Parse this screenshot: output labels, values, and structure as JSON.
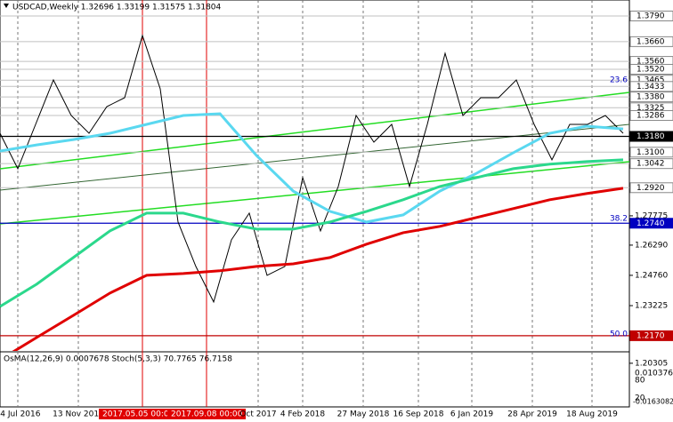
{
  "chart_data": {
    "type": "line",
    "title": "USDCAD,Weekly  1.32696 1.33199 1.31575 1.31804",
    "ylim": [
      1.2093,
      1.3871
    ],
    "yticks": [
      {
        "value": 1.27775,
        "label": "1.27775"
      },
      {
        "value": 1.2629,
        "label": "1.26290"
      },
      {
        "value": 1.2476,
        "label": "1.24760"
      },
      {
        "value": 1.23225,
        "label": "1.23225"
      },
      {
        "value": 1.20305,
        "label": "1.20305"
      }
    ],
    "levels": [
      {
        "value": 1.379,
        "label": "1.3790",
        "color": "#c0c0c0"
      },
      {
        "value": 1.366,
        "label": "1.3660",
        "color": "#c0c0c0"
      },
      {
        "value": 1.356,
        "label": "1.3560",
        "color": "#c0c0c0"
      },
      {
        "value": 1.352,
        "label": "1.3520",
        "color": "#c0c0c0"
      },
      {
        "value": 1.3465,
        "label": "1.3465",
        "color": "#c0c0c0"
      },
      {
        "value": 1.3433,
        "label": "1.3433",
        "color": "#c0c0c0"
      },
      {
        "value": 1.338,
        "label": "1.3380",
        "color": "#c0c0c0"
      },
      {
        "value": 1.3325,
        "label": "1.3325",
        "color": "#c0c0c0"
      },
      {
        "value": 1.3286,
        "label": "1.3286",
        "color": "#c0c0c0"
      },
      {
        "value": 1.318,
        "label": "1.3180",
        "color": "#000000"
      },
      {
        "value": 1.31,
        "label": "1.3100",
        "color": "#c0c0c0"
      },
      {
        "value": 1.3042,
        "label": "1.3042",
        "color": "#c0c0c0"
      },
      {
        "value": 1.292,
        "label": "1.2920",
        "color": "#c0c0c0"
      },
      {
        "value": 1.274,
        "label": "1.2740",
        "color": "#0000c0"
      },
      {
        "value": 1.217,
        "label": "1.2170",
        "color": "#c00000"
      }
    ],
    "x_labels": [
      "24 Jul 2016",
      "13 Nov 2016",
      "2017.05.05 00:00",
      "2017.09.08 00:00",
      "Oct 2017",
      "4 Feb 2018",
      "27 May 2018",
      "16 Sep 2018",
      "6 Jan 2019",
      "28 Apr 2019",
      "18 Aug 2019"
    ],
    "annotations": [
      "23.6",
      "38.2",
      "50.0"
    ],
    "series": [
      {
        "name": "Close",
        "color": "#000000",
        "values": [
          1.3196,
          1.3016,
          1.3241,
          1.3466,
          1.3286,
          1.3196,
          1.3331,
          1.3376,
          1.3691,
          1.3421,
          1.2746,
          1.2521,
          1.2341,
          1.2656,
          1.2791,
          1.2476,
          1.2521,
          1.2971,
          1.2701,
          1.2926,
          1.3286,
          1.3151,
          1.3241,
          1.2926,
          1.3241,
          1.3601,
          1.3286,
          1.3376,
          1.3376,
          1.3466,
          1.3241,
          1.3061,
          1.3241,
          1.3241,
          1.3286,
          1.3196
        ]
      },
      {
        "name": "EMA fast",
        "color": "#5ad8f0",
        "values": [
          1.3106,
          1.3137,
          1.3164,
          1.3196,
          1.3241,
          1.3286,
          1.3295,
          1.3083,
          1.2903,
          1.28,
          1.2746,
          1.2782,
          1.2903,
          1.2993,
          1.3097,
          1.3196,
          1.3232,
          1.3218
        ]
      },
      {
        "name": "EMA mid",
        "color": "#2bd88c",
        "values": [
          1.2318,
          1.2431,
          1.2566,
          1.2701,
          1.2791,
          1.2791,
          1.2746,
          1.271,
          1.271,
          1.2746,
          1.28,
          1.2859,
          1.2926,
          1.2971,
          1.3016,
          1.3039,
          1.3052,
          1.3061
        ]
      },
      {
        "name": "EMA slow",
        "color": "#e00000",
        "values": [
          1.2048,
          1.2161,
          1.2273,
          1.2386,
          1.2476,
          1.2485,
          1.2499,
          1.2521,
          1.2534,
          1.2566,
          1.2634,
          1.2692,
          1.2724,
          1.2769,
          1.2814,
          1.2859,
          1.289,
          1.2917
        ]
      }
    ],
    "indicator": {
      "title": "OsMA(12,26,9) 0.0007678  Stoch(5,3,3) 70.7765 76.7158",
      "axis_labels": [
        "0.0103764",
        "80",
        "20",
        "-0.0163082"
      ]
    }
  }
}
